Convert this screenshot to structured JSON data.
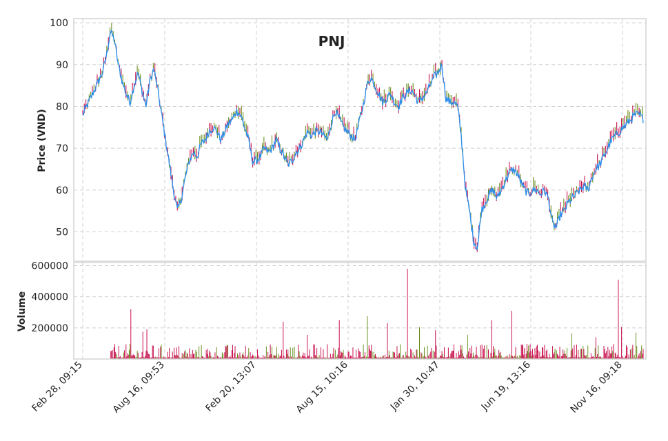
{
  "chart_data": {
    "type": "line",
    "title": "PNJ",
    "price_panel": {
      "ylabel": "Price (VND)",
      "yticks": [
        50,
        60,
        70,
        80,
        90,
        100
      ],
      "ylim": [
        43,
        101
      ],
      "series": [
        {
          "values": [
            78,
            80,
            82,
            84,
            86,
            88,
            92,
            98,
            96,
            90,
            86,
            83,
            81,
            85,
            88,
            84,
            80,
            86,
            89,
            84,
            78,
            72,
            66,
            60,
            55,
            58,
            63,
            67,
            69,
            68,
            71,
            72,
            74,
            75,
            74,
            72,
            74,
            76,
            77,
            79,
            78,
            75,
            72,
            67,
            67,
            68,
            70,
            69,
            70,
            72,
            70,
            68,
            66,
            67,
            69,
            70,
            72,
            74,
            73,
            74,
            74,
            73,
            72,
            76,
            79,
            77,
            75,
            74,
            73,
            72,
            76,
            80,
            85,
            87,
            85,
            83,
            81,
            82,
            83,
            81,
            80,
            82,
            83,
            84,
            83,
            81,
            82,
            83,
            85,
            87,
            88,
            90,
            82,
            81,
            81,
            80,
            72,
            60,
            55,
            48,
            46,
            55,
            57,
            59,
            60,
            58,
            60,
            62,
            64,
            65,
            64,
            62,
            60,
            59,
            60,
            60,
            59,
            60,
            58,
            52,
            51,
            54,
            55,
            57,
            58,
            59,
            60,
            61,
            60,
            63,
            65,
            66,
            68,
            70,
            72,
            73,
            74,
            75,
            76,
            77,
            78,
            78,
            77
          ]
        }
      ]
    },
    "volume_panel": {
      "ylabel": "Volume",
      "yticks": [
        200000,
        400000,
        600000
      ],
      "ytick_labels": [
        "200000",
        "400000",
        "600000"
      ],
      "ylim": [
        0,
        620000
      ]
    },
    "x_tick_labels": [
      "Feb 28, 09:15",
      "Aug 16, 09:53",
      "Feb 20, 13:07",
      "Aug 15, 10:16",
      "Jan 30, 10:47",
      "Jun 19, 13:16",
      "Nov 16, 09:18"
    ],
    "grid": true,
    "colors": {
      "price_line": "#2f8ee8",
      "up": "#6a8f1e",
      "down": "#c8104c",
      "volume": "#c8104c",
      "frame": "#d4d4d4",
      "grid": "#cfcfcf"
    }
  }
}
